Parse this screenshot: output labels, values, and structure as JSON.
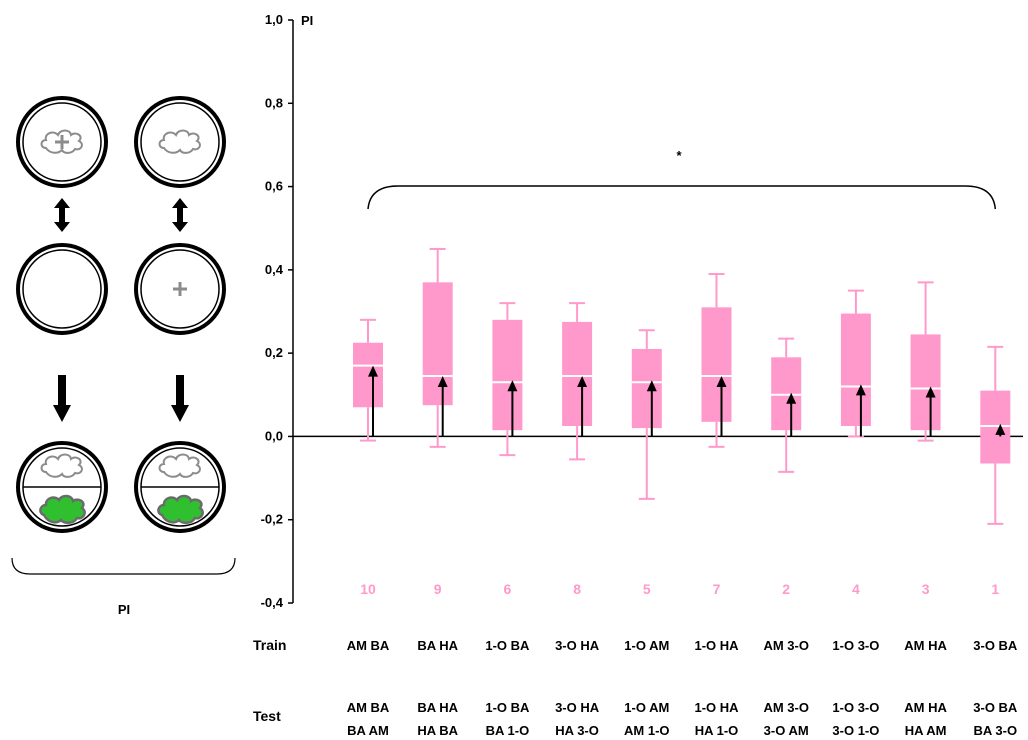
{
  "schematic": {
    "bottom_label": "PI",
    "colors": {
      "ring": "#000000",
      "cloud_stroke": "#8c8c8c",
      "plus": "#8c8c8c",
      "green": "#2fbf2f",
      "green_edge": "#6b6b6b"
    }
  },
  "chart_data": {
    "type": "box",
    "ylabel": "PI",
    "ylim": [
      -0.4,
      1.0
    ],
    "yticks": [
      -0.4,
      -0.2,
      0.0,
      0.2,
      0.4,
      0.6,
      0.8,
      1.0
    ],
    "ytick_labels": [
      "-0,4",
      "-0,2",
      "0,0",
      "0,2",
      "0,4",
      "0,6",
      "0,8",
      "1,0"
    ],
    "significance": "*",
    "colors": {
      "box": "#ff99cc",
      "median": "#ffffff",
      "arrow": "#000000",
      "axis": "#000000"
    },
    "row_labels": {
      "train": "Train",
      "test": "Test"
    },
    "groups": [
      {
        "n": "10",
        "train": "AM BA",
        "test1": "AM BA",
        "test2": "BA AM",
        "min": -0.01,
        "q1": 0.07,
        "median": 0.17,
        "q3": 0.225,
        "max": 0.28,
        "arrow": 0.17
      },
      {
        "n": "9",
        "train": "BA HA",
        "test1": "BA HA",
        "test2": "HA BA",
        "min": -0.025,
        "q1": 0.075,
        "median": 0.145,
        "q3": 0.37,
        "max": 0.45,
        "arrow": 0.145
      },
      {
        "n": "6",
        "train": "1-O BA",
        "test1": "1-O BA",
        "test2": "BA 1-O",
        "min": -0.045,
        "q1": 0.015,
        "median": 0.13,
        "q3": 0.28,
        "max": 0.32,
        "arrow": 0.135
      },
      {
        "n": "8",
        "train": "3-O HA",
        "test1": "3-O HA",
        "test2": "HA 3-O",
        "min": -0.055,
        "q1": 0.025,
        "median": 0.145,
        "q3": 0.275,
        "max": 0.32,
        "arrow": 0.145
      },
      {
        "n": "5",
        "train": "1-O AM",
        "test1": "1-O AM",
        "test2": "AM 1-O",
        "min": -0.15,
        "q1": 0.02,
        "median": 0.13,
        "q3": 0.21,
        "max": 0.255,
        "arrow": 0.135
      },
      {
        "n": "7",
        "train": "1-O HA",
        "test1": "1-O HA",
        "test2": "HA 1-O",
        "min": -0.025,
        "q1": 0.035,
        "median": 0.145,
        "q3": 0.31,
        "max": 0.39,
        "arrow": 0.145
      },
      {
        "n": "2",
        "train": "AM 3-O",
        "test1": "AM 3-O",
        "test2": "3-O AM",
        "min": -0.085,
        "q1": 0.015,
        "median": 0.1,
        "q3": 0.19,
        "max": 0.235,
        "arrow": 0.105
      },
      {
        "n": "4",
        "train": "1-O 3-O",
        "test1": "1-O 3-O",
        "test2": "3-O 1-O",
        "min": 0.0,
        "q1": 0.025,
        "median": 0.12,
        "q3": 0.295,
        "max": 0.35,
        "arrow": 0.125
      },
      {
        "n": "3",
        "train": "AM HA",
        "test1": "AM HA",
        "test2": "HA AM",
        "min": -0.01,
        "q1": 0.015,
        "median": 0.115,
        "q3": 0.245,
        "max": 0.37,
        "arrow": 0.12
      },
      {
        "n": "1",
        "train": "3-O BA",
        "test1": "3-O BA",
        "test2": "BA 3-O",
        "min": -0.21,
        "q1": -0.065,
        "median": 0.025,
        "q3": 0.11,
        "max": 0.215,
        "arrow": 0.03
      }
    ]
  }
}
